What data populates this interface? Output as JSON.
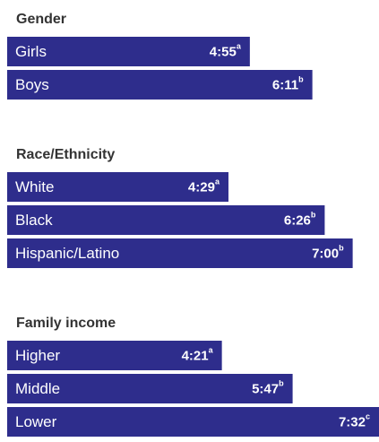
{
  "chart_data": [
    {
      "type": "bar",
      "title": "Gender",
      "categories": [
        "Girls",
        "Boys"
      ],
      "values": [
        295,
        371
      ],
      "value_labels": [
        "4:55",
        "6:11"
      ],
      "notes": [
        "a",
        "b"
      ],
      "color": "#2e2d8c"
    },
    {
      "type": "bar",
      "title": "Race/Ethnicity",
      "categories": [
        "White",
        "Black",
        "Hispanic/Latino"
      ],
      "values": [
        269,
        386,
        420
      ],
      "value_labels": [
        "4:29",
        "6:26",
        "7:00"
      ],
      "notes": [
        "a",
        "b",
        "b"
      ],
      "color": "#2e2d8c"
    },
    {
      "type": "bar",
      "title": "Family income",
      "categories": [
        "Higher",
        "Middle",
        "Lower"
      ],
      "values": [
        261,
        347,
        452
      ],
      "value_labels": [
        "4:21",
        "5:47",
        "7:32"
      ],
      "notes": [
        "a",
        "b",
        "c"
      ],
      "color": "#2e2d8c"
    }
  ]
}
